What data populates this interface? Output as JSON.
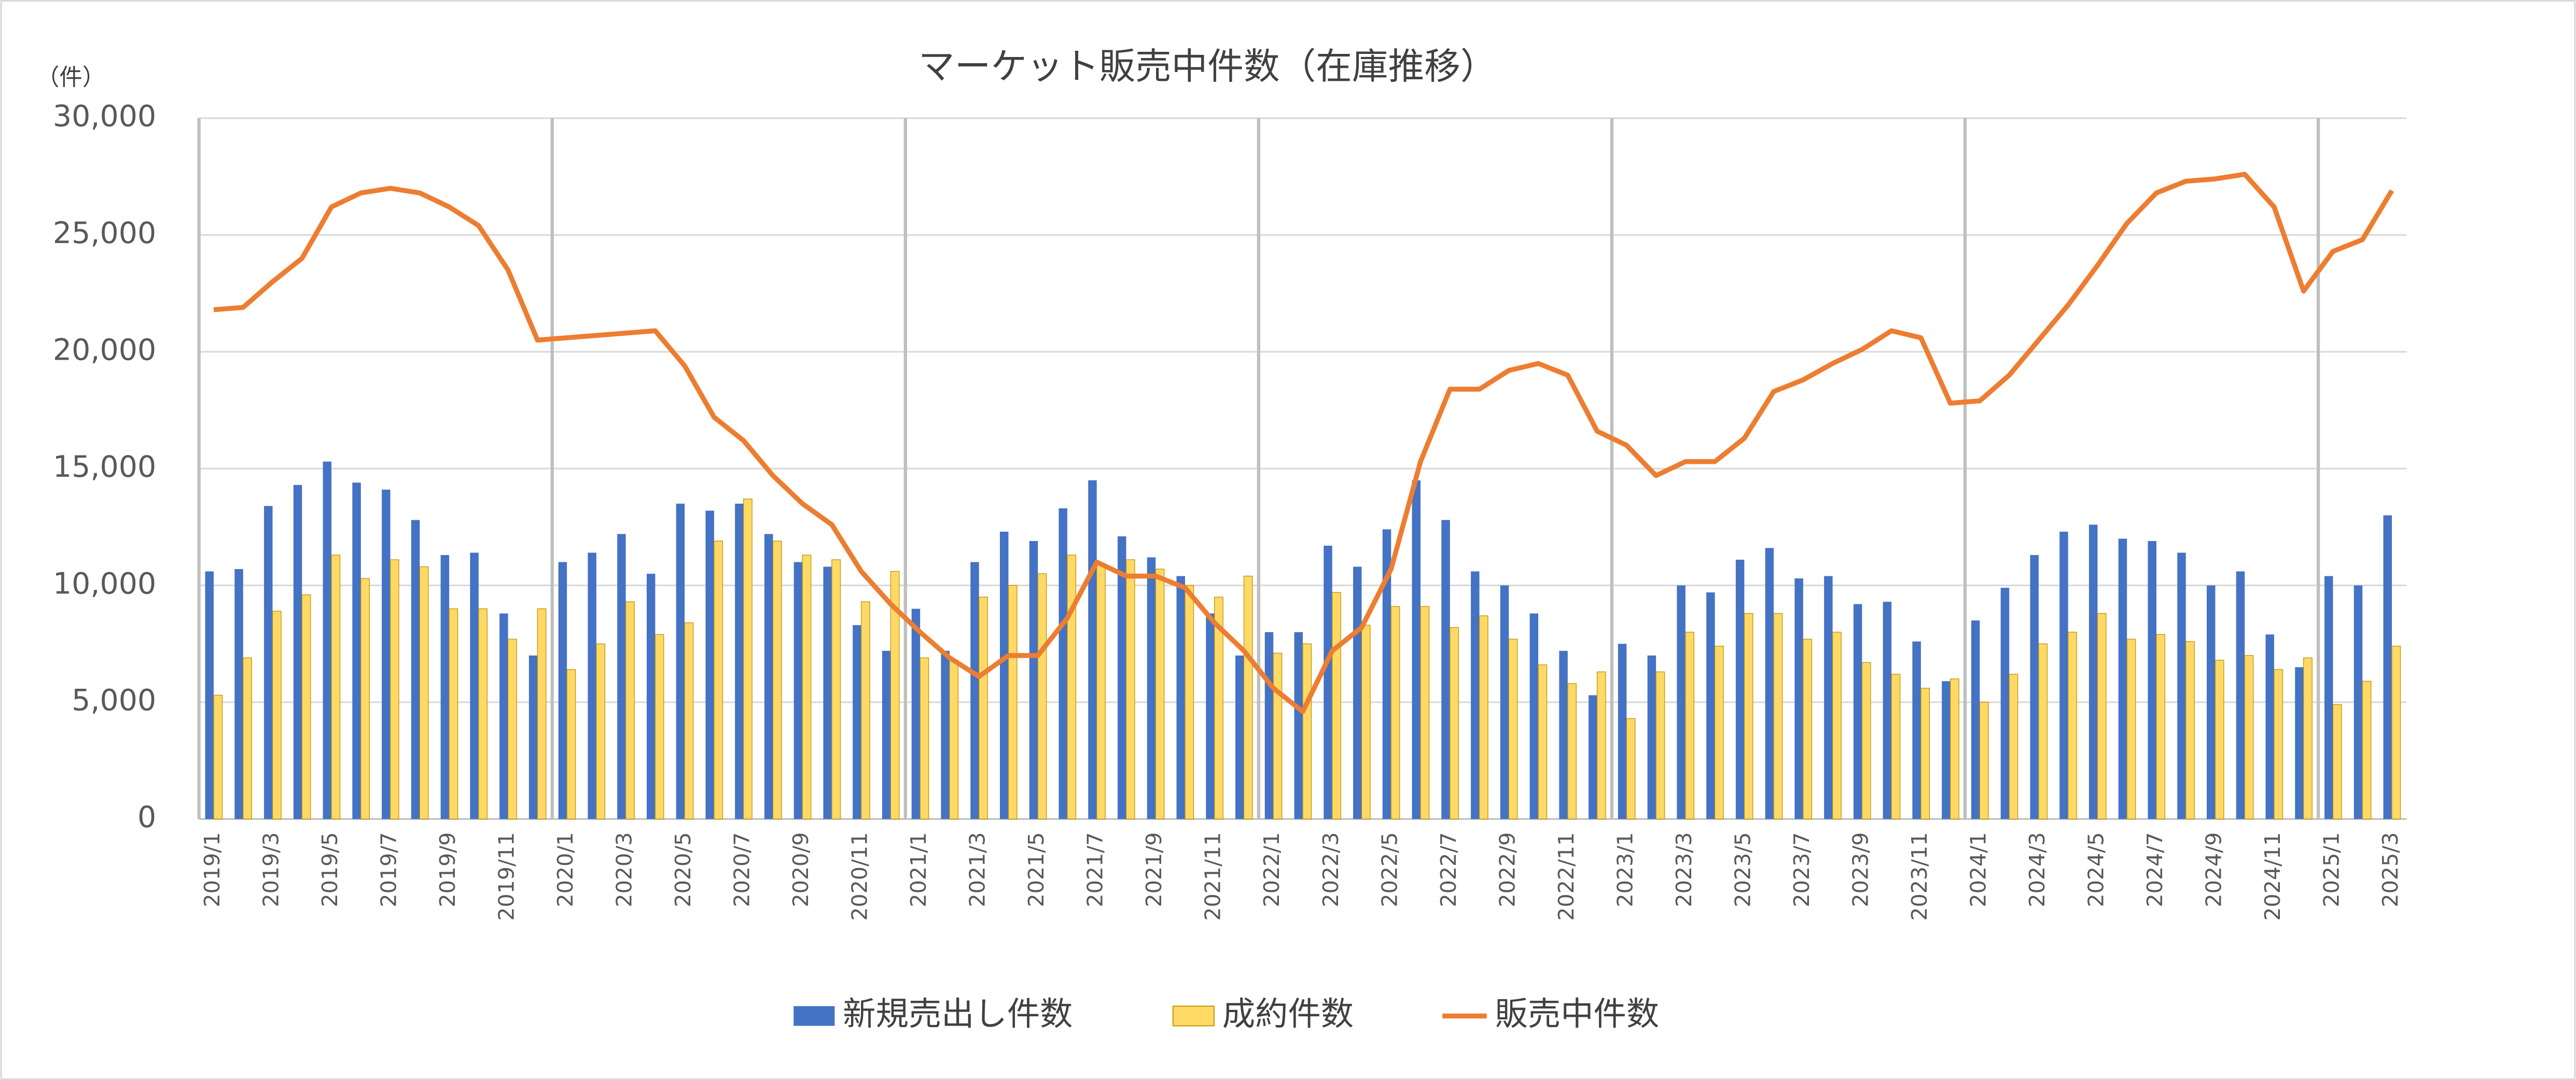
{
  "chart_data": {
    "type": "bar_line",
    "title": "マーケット販売中件数（在庫推移）",
    "y_unit": "（件）",
    "categories": [
      "2019/1",
      null,
      "2019/3",
      null,
      "2019/5",
      null,
      "2019/7",
      null,
      "2019/9",
      null,
      "2019/11",
      null,
      "2020/1",
      null,
      "2020/3",
      null,
      "2020/5",
      null,
      "2020/7",
      null,
      "2020/9",
      null,
      "2020/11",
      null,
      "2021/1",
      null,
      "2021/3",
      null,
      "2021/5",
      null,
      "2021/7",
      null,
      "2021/9",
      null,
      "2021/11",
      null,
      "2022/1",
      null,
      "2022/3",
      null,
      "2022/5",
      null,
      "2022/7",
      null,
      "2022/9",
      null,
      "2022/11",
      null,
      "2023/1",
      null,
      "2023/3",
      null,
      "2023/5",
      null,
      "2023/7",
      null,
      "2023/9",
      null,
      "2023/11",
      null,
      "2024/1",
      null,
      "2024/3",
      null,
      "2024/5",
      null,
      "2024/7",
      null,
      "2024/9",
      null,
      "2024/11",
      null,
      "2025/1",
      null,
      "2025/3"
    ],
    "series": [
      {
        "name": "新規売出し件数",
        "type": "bar",
        "color": "#4472c4",
        "values": [
          10600,
          10700,
          13400,
          14300,
          15300,
          14400,
          14100,
          12800,
          11300,
          11400,
          8800,
          7000,
          11000,
          11400,
          12200,
          10500,
          13500,
          13200,
          13500,
          12200,
          11000,
          10800,
          8300,
          7200,
          9000,
          7200,
          11000,
          12300,
          11900,
          13300,
          14500,
          12100,
          11200,
          10400,
          8800,
          7000,
          8000,
          8000,
          11700,
          10800,
          12400,
          14500,
          12800,
          10600,
          10000,
          8800,
          7200,
          5300,
          7500,
          7000,
          10000,
          9700,
          11100,
          11600,
          10300,
          10400,
          9200,
          9300,
          7600,
          5900,
          8500,
          9900,
          11300,
          12300,
          12600,
          12000,
          11900,
          11400,
          10000,
          10600,
          7900,
          6500,
          10400,
          10000,
          13000
        ]
      },
      {
        "name": "成約件数",
        "type": "bar",
        "color": "#ffd966",
        "values": [
          5300,
          6900,
          8900,
          9600,
          11300,
          10300,
          11100,
          10800,
          9000,
          9000,
          7700,
          9000,
          6400,
          7500,
          9300,
          7900,
          8400,
          11900,
          13700,
          11900,
          11300,
          11100,
          9300,
          10600,
          6900,
          6800,
          9500,
          10000,
          10500,
          11300,
          10900,
          11100,
          10700,
          10000,
          9500,
          10400,
          7100,
          7500,
          9700,
          8300,
          9100,
          9100,
          8200,
          8700,
          7700,
          6600,
          5800,
          6300,
          4300,
          6300,
          8000,
          7400,
          8800,
          8800,
          7700,
          8000,
          6700,
          6200,
          5600,
          6000,
          5000,
          6200,
          7500,
          8000,
          8800,
          7700,
          7900,
          7600,
          6800,
          7000,
          6400,
          6900,
          4900,
          5900,
          7400
        ]
      },
      {
        "name": "販売中件数",
        "type": "line",
        "color": "#ed7d31",
        "values": [
          21800,
          21900,
          23000,
          24000,
          26200,
          26800,
          27000,
          26800,
          26200,
          25400,
          23500,
          20500,
          20600,
          20700,
          20800,
          20900,
          19400,
          17200,
          16200,
          14700,
          13500,
          12600,
          10600,
          9200,
          8000,
          6900,
          6100,
          7000,
          7000,
          8600,
          11000,
          10400,
          10400,
          9900,
          8400,
          7200,
          5600,
          4600,
          7200,
          8200,
          10700,
          15300,
          18400,
          18400,
          19200,
          19500,
          19000,
          16600,
          16000,
          14700,
          15300,
          15300,
          16300,
          18300,
          18800,
          19500,
          20100,
          20900,
          20600,
          17800,
          17900,
          19000,
          20500,
          22000,
          23700,
          25500,
          26800,
          27300,
          27400,
          27600,
          26200,
          22600,
          24300,
          24800,
          26900
        ]
      }
    ],
    "ylim": [
      0,
      30000
    ],
    "yticks": [
      0,
      {
        "value": 5000,
        "label": "5,000"
      },
      {
        "value": 10000,
        "label": "10,000"
      },
      {
        "value": 15000,
        "label": "15,000"
      },
      {
        "value": 20000,
        "label": "20,000"
      },
      {
        "value": 25000,
        "label": "25,000"
      },
      {
        "value": 30000,
        "label": "30,000"
      }
    ],
    "grid": true,
    "legend": "bottom"
  }
}
